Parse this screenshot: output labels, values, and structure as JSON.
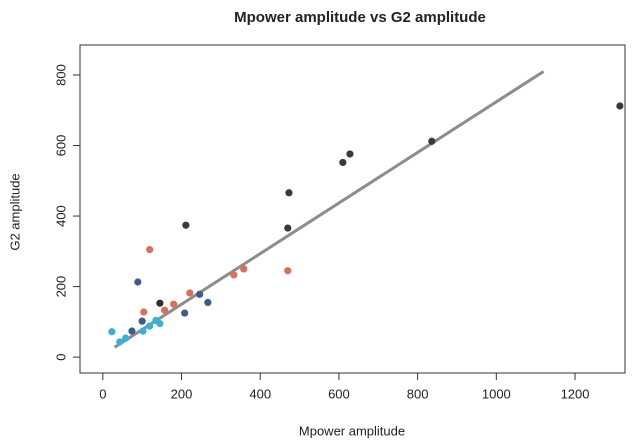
{
  "chart_data": {
    "type": "scatter",
    "title": "Mpower amplitude vs G2 amplitude",
    "x_label": "Mpower amplitude",
    "y_label": "G2 amplitude",
    "x": [
      1314,
      836,
      610,
      628,
      473,
      470,
      211,
      145,
      246,
      119,
      470,
      358,
      333,
      221,
      180,
      157,
      104,
      89,
      267,
      208,
      74,
      100,
      23,
      43,
      58,
      102,
      145,
      119,
      135
    ],
    "y": [
      712,
      612,
      552,
      576,
      466,
      366,
      374,
      153,
      178,
      305,
      245,
      250,
      233,
      182,
      150,
      133,
      128,
      213,
      155,
      125,
      74,
      102,
      72,
      43,
      54,
      74,
      95,
      88,
      104
    ],
    "colors": [
      "#3a3a3a",
      "#3a3a3a",
      "#3a3a3a",
      "#3a3a3a",
      "#3a3a3a",
      "#3a3a3a",
      "#3a3a3a",
      "#2f2f2f",
      "#3e5c8a",
      "#d9705a",
      "#d9705a",
      "#d9705a",
      "#d9705a",
      "#d9705a",
      "#d9705a",
      "#d9705a",
      "#d9705a",
      "#3e5c8a",
      "#3e5c8a",
      "#3e5c8a",
      "#3e5c8a",
      "#3e5c8a",
      "#39b0d6",
      "#39b0d6",
      "#39b0d6",
      "#39b0d6",
      "#39b0d6",
      "#39b0d6",
      "#39b0d6"
    ],
    "trend_line": {
      "x": [
        30,
        1120
      ],
      "y": [
        28,
        810
      ],
      "color": "#8c8c8c"
    },
    "xlim": [
      -58,
      1327
    ],
    "ylim": [
      -45,
      885
    ],
    "xticks": [
      0,
      200,
      400,
      600,
      800,
      1000,
      1200
    ],
    "yticks": [
      0,
      200,
      400,
      600,
      800
    ]
  }
}
